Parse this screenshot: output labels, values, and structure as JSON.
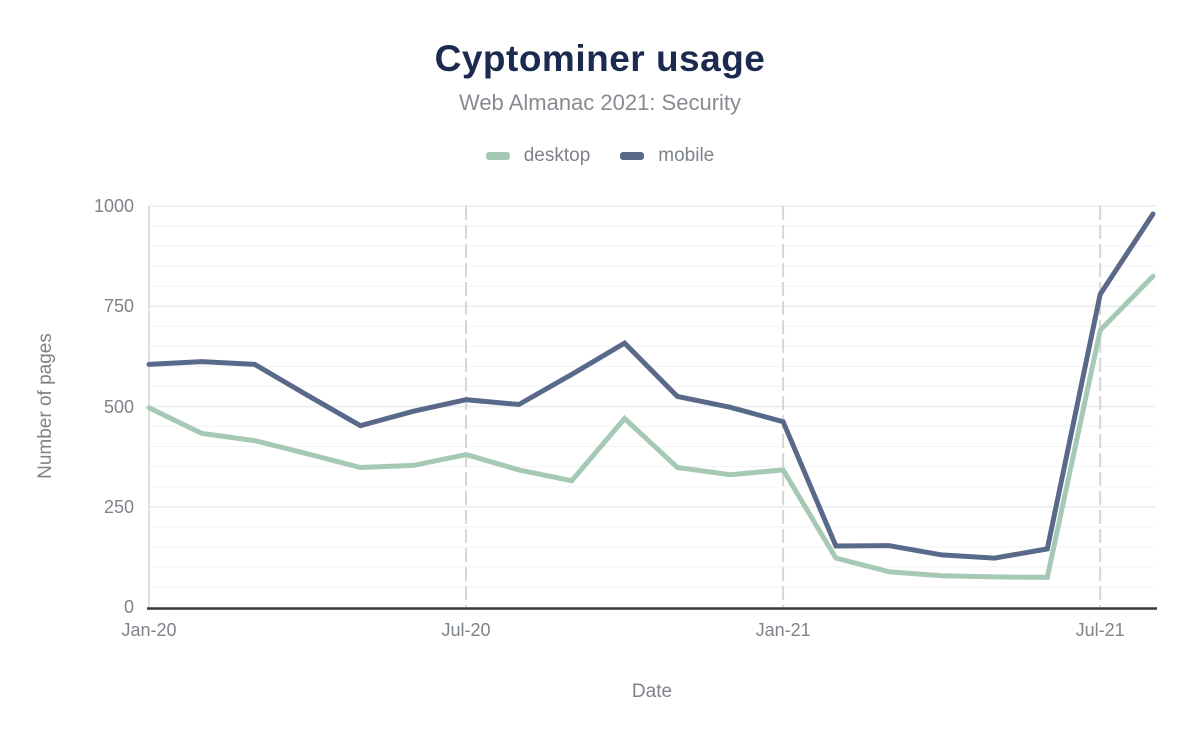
{
  "header": {
    "title": "Cyptominer usage",
    "subtitle": "Web Almanac 2021: Security"
  },
  "axes": {
    "y_title": "Number of pages",
    "x_title": "Date"
  },
  "colors": {
    "title": "#1b2a4e",
    "subtitle": "#878b91",
    "tick_text": "#7e838a",
    "axis_line": "#37393d",
    "gridline_minor": "#f2f3f5",
    "gridline_major": "#e9ebed",
    "gridline_vertical": "#d4d6d8",
    "desktop": "#a5c9b5",
    "mobile": "#58698a"
  },
  "chart_data": {
    "type": "line",
    "title": "Cyptominer usage",
    "subtitle": "Web Almanac 2021: Security",
    "xlabel": "Date",
    "ylabel": "Number of pages",
    "x": [
      "Jan-20",
      "Feb-20",
      "Mar-20",
      "Apr-20",
      "May-20",
      "Jun-20",
      "Jul-20",
      "Aug-20",
      "Sep-20",
      "Oct-20",
      "Nov-20",
      "Dec-20",
      "Jan-21",
      "Feb-21",
      "Mar-21",
      "Apr-21",
      "May-21",
      "Jun-21",
      "Jul-21",
      "Aug-21"
    ],
    "series": [
      {
        "name": "desktop",
        "color": "#a5c9b5",
        "values": [
          497,
          433,
          415,
          382,
          348,
          353,
          380,
          342,
          315,
          470,
          348,
          330,
          342,
          122,
          88,
          78,
          75,
          74,
          690,
          825
        ]
      },
      {
        "name": "mobile",
        "color": "#58698a",
        "values": [
          605,
          612,
          605,
          528,
          452,
          488,
          517,
          505,
          580,
          658,
          525,
          498,
          462,
          152,
          153,
          130,
          122,
          145,
          780,
          980
        ]
      }
    ],
    "ylim": [
      0,
      1000
    ],
    "y_ticks": [
      0,
      250,
      500,
      750,
      1000
    ],
    "y_minor_step": 50,
    "x_tick_labels": [
      "Jan-20",
      "Jul-20",
      "Jan-21",
      "Jul-21"
    ],
    "x_tick_indices": [
      0,
      6,
      12,
      18
    ],
    "grid": true,
    "legend_position": "top"
  }
}
